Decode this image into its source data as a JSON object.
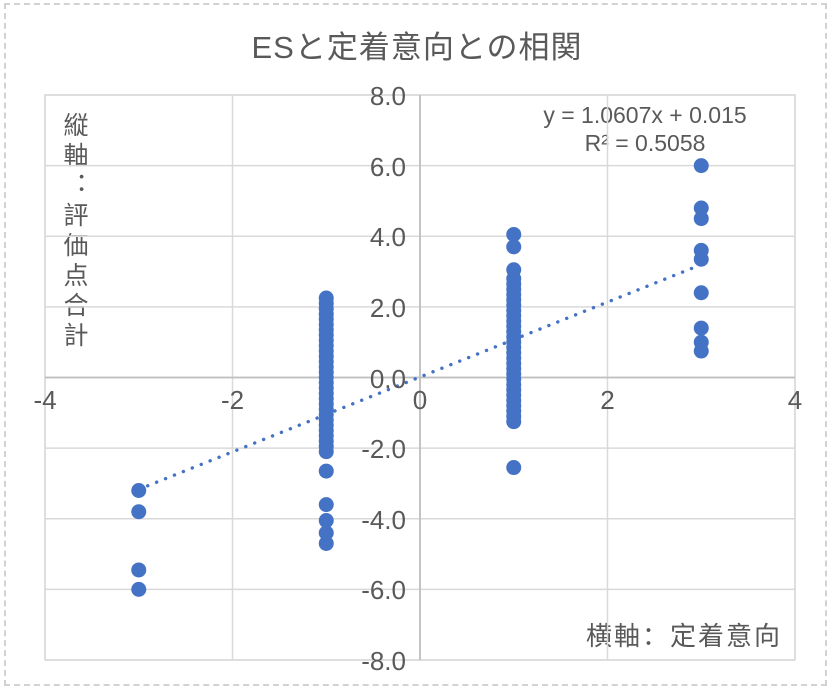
{
  "chart": {
    "title": "ESと定着意向との相関",
    "equation_line1": "y = 1.0607x + 0.015",
    "equation_line2": "R² = 0.5058",
    "y_axis_title": "縦軸：評価点合計",
    "x_axis_title": "横軸：定着意向"
  },
  "colors": {
    "point": "#4472C4",
    "trendline": "#4472C4",
    "gridline": "#D9D9D9",
    "axis_line": "#BFBFBF",
    "plot_border": "#D9D9D9",
    "text": "#595959"
  },
  "chart_data": {
    "type": "scatter",
    "title": "ESと定着意向との相関",
    "xlabel": "横軸：定着意向",
    "ylabel": "縦軸：評価点合計",
    "xlim": [
      -4,
      4
    ],
    "ylim": [
      -8,
      8
    ],
    "grid": true,
    "x_ticks": [
      {
        "v": -4,
        "label": "-4"
      },
      {
        "v": -2,
        "label": "-2"
      },
      {
        "v": 0,
        "label": "0"
      },
      {
        "v": 2,
        "label": "2"
      },
      {
        "v": 4,
        "label": "4"
      }
    ],
    "y_ticks": [
      {
        "v": 8,
        "label": "8.0"
      },
      {
        "v": 6,
        "label": "6.0"
      },
      {
        "v": 4,
        "label": "4.0"
      },
      {
        "v": 2,
        "label": "2.0"
      },
      {
        "v": 0,
        "label": "0.0"
      },
      {
        "v": -2,
        "label": "-2.0"
      },
      {
        "v": -4,
        "label": "-4.0"
      },
      {
        "v": -6,
        "label": "-6.0"
      },
      {
        "v": -8,
        "label": "-8.0"
      }
    ],
    "trendline": {
      "slope": 1.0607,
      "intercept": 0.015,
      "r_squared": 0.5058,
      "x_range": [
        -3,
        3
      ],
      "style": "dotted",
      "equation_label": "y = 1.0607x + 0.015",
      "r2_label": "R² = 0.5058"
    },
    "series": [
      {
        "name": "評価点合計",
        "color": "#4472C4",
        "points": [
          [
            -3,
            -3.2
          ],
          [
            -3,
            -3.8
          ],
          [
            -3,
            -5.45
          ],
          [
            -3,
            -6.0
          ],
          [
            -1,
            2.25
          ],
          [
            -1,
            2.1
          ],
          [
            -1,
            1.95
          ],
          [
            -1,
            1.8
          ],
          [
            -1,
            1.65
          ],
          [
            -1,
            1.5
          ],
          [
            -1,
            1.35
          ],
          [
            -1,
            1.2
          ],
          [
            -1,
            1.05
          ],
          [
            -1,
            0.9
          ],
          [
            -1,
            0.75
          ],
          [
            -1,
            0.6
          ],
          [
            -1,
            0.45
          ],
          [
            -1,
            0.3
          ],
          [
            -1,
            0.15
          ],
          [
            -1,
            0.0
          ],
          [
            -1,
            -0.15
          ],
          [
            -1,
            -0.3
          ],
          [
            -1,
            -0.45
          ],
          [
            -1,
            -0.6
          ],
          [
            -1,
            -0.75
          ],
          [
            -1,
            -0.9
          ],
          [
            -1,
            -1.05
          ],
          [
            -1,
            -1.2
          ],
          [
            -1,
            -1.35
          ],
          [
            -1,
            -1.5
          ],
          [
            -1,
            -1.65
          ],
          [
            -1,
            -1.8
          ],
          [
            -1,
            -1.95
          ],
          [
            -1,
            -2.1
          ],
          [
            -1,
            -2.65
          ],
          [
            -1,
            -3.6
          ],
          [
            -1,
            -4.05
          ],
          [
            -1,
            -4.4
          ],
          [
            -1,
            -4.7
          ],
          [
            1,
            4.05
          ],
          [
            1,
            3.7
          ],
          [
            1,
            3.05
          ],
          [
            1,
            2.8
          ],
          [
            1,
            2.65
          ],
          [
            1,
            2.5
          ],
          [
            1,
            2.35
          ],
          [
            1,
            2.2
          ],
          [
            1,
            2.05
          ],
          [
            1,
            1.9
          ],
          [
            1,
            1.75
          ],
          [
            1,
            1.6
          ],
          [
            1,
            1.45
          ],
          [
            1,
            1.3
          ],
          [
            1,
            1.15
          ],
          [
            1,
            1.0
          ],
          [
            1,
            0.85
          ],
          [
            1,
            0.7
          ],
          [
            1,
            0.55
          ],
          [
            1,
            0.4
          ],
          [
            1,
            0.25
          ],
          [
            1,
            0.1
          ],
          [
            1,
            -0.05
          ],
          [
            1,
            -0.2
          ],
          [
            1,
            -0.35
          ],
          [
            1,
            -0.5
          ],
          [
            1,
            -0.65
          ],
          [
            1,
            -0.8
          ],
          [
            1,
            -0.95
          ],
          [
            1,
            -1.1
          ],
          [
            1,
            -1.25
          ],
          [
            1,
            -2.55
          ],
          [
            3,
            6.0
          ],
          [
            3,
            4.8
          ],
          [
            3,
            4.5
          ],
          [
            3,
            3.6
          ],
          [
            3,
            3.35
          ],
          [
            3,
            2.4
          ],
          [
            3,
            1.4
          ],
          [
            3,
            1.0
          ],
          [
            3,
            0.75
          ]
        ]
      }
    ]
  }
}
